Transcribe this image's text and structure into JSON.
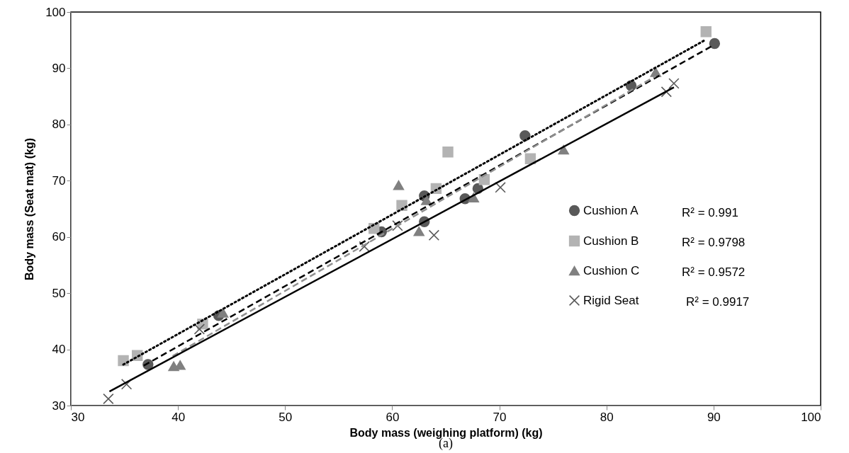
{
  "chart_data": {
    "type": "scatter",
    "xlabel": "Body mass (weighing platform) (kg)",
    "ylabel": "Body mass (Seat mat) (kg)",
    "xlim": [
      30,
      100
    ],
    "ylim": [
      30,
      100
    ],
    "xticks": [
      30,
      40,
      50,
      60,
      70,
      80,
      90,
      100
    ],
    "yticks": [
      30,
      40,
      50,
      60,
      70,
      80,
      90,
      100
    ],
    "grid": false,
    "legend": "right",
    "series": [
      {
        "name": "Cushion A",
        "marker": "circle",
        "color": "#595959",
        "x": [
          37.2,
          43.8,
          59,
          63,
          63,
          66.8,
          68,
          72.4,
          82.3,
          90.1
        ],
        "values": [
          37.3,
          46,
          60.9,
          67.3,
          62.7,
          66.8,
          68.6,
          78,
          86.9,
          94.4
        ]
      },
      {
        "name": "Cushion B",
        "marker": "square",
        "color": "#b3b3b3",
        "x": [
          34.9,
          36.2,
          42.3,
          58.3,
          60.9,
          64.1,
          65.2,
          68.6,
          72.9,
          89.3
        ],
        "values": [
          38,
          38.9,
          44.5,
          61.5,
          65.6,
          68.6,
          75.1,
          70.2,
          73.9,
          96.5
        ]
      },
      {
        "name": "Cushion C",
        "marker": "triangle",
        "color": "#808080",
        "x": [
          39.6,
          40.2,
          44.2,
          60.6,
          62.5,
          63.2,
          67.6,
          76,
          84.6
        ],
        "values": [
          37,
          37.2,
          46.5,
          69.2,
          61,
          66.5,
          67,
          75.5,
          89.3
        ]
      },
      {
        "name": "Rigid Seat",
        "marker": "cross",
        "color": "#595959",
        "x": [
          33.5,
          35.2,
          42,
          57.4,
          60.5,
          63.9,
          70.1,
          85.6,
          86.3
        ],
        "values": [
          31.2,
          33.8,
          43.6,
          58.3,
          62,
          60.3,
          68.8,
          85.8,
          87.3
        ]
      },
      {
        "type": "line",
        "line_style": "dashed",
        "color": "#000000",
        "x": [
          36.8,
          89.9
        ],
        "values": [
          37.1,
          94
        ]
      },
      {
        "type": "line",
        "line_style": "dotted",
        "color": "#000000",
        "x": [
          34.9,
          89.1
        ],
        "values": [
          37.3,
          94.9
        ]
      },
      {
        "type": "line",
        "line_style": "dashed",
        "color": "#909090",
        "x": [
          39.5,
          84.6
        ],
        "values": [
          38.8,
          88.6
        ]
      },
      {
        "type": "line",
        "line_style": "solid",
        "color": "#000000",
        "x": [
          33.6,
          86.3
        ],
        "values": [
          32.5,
          86.6
        ]
      }
    ],
    "annotations": [
      "R² = 0.991",
      "R² = 0.9798",
      "R² = 0.9572",
      "R² = 0.9917",
      "(a)"
    ]
  }
}
